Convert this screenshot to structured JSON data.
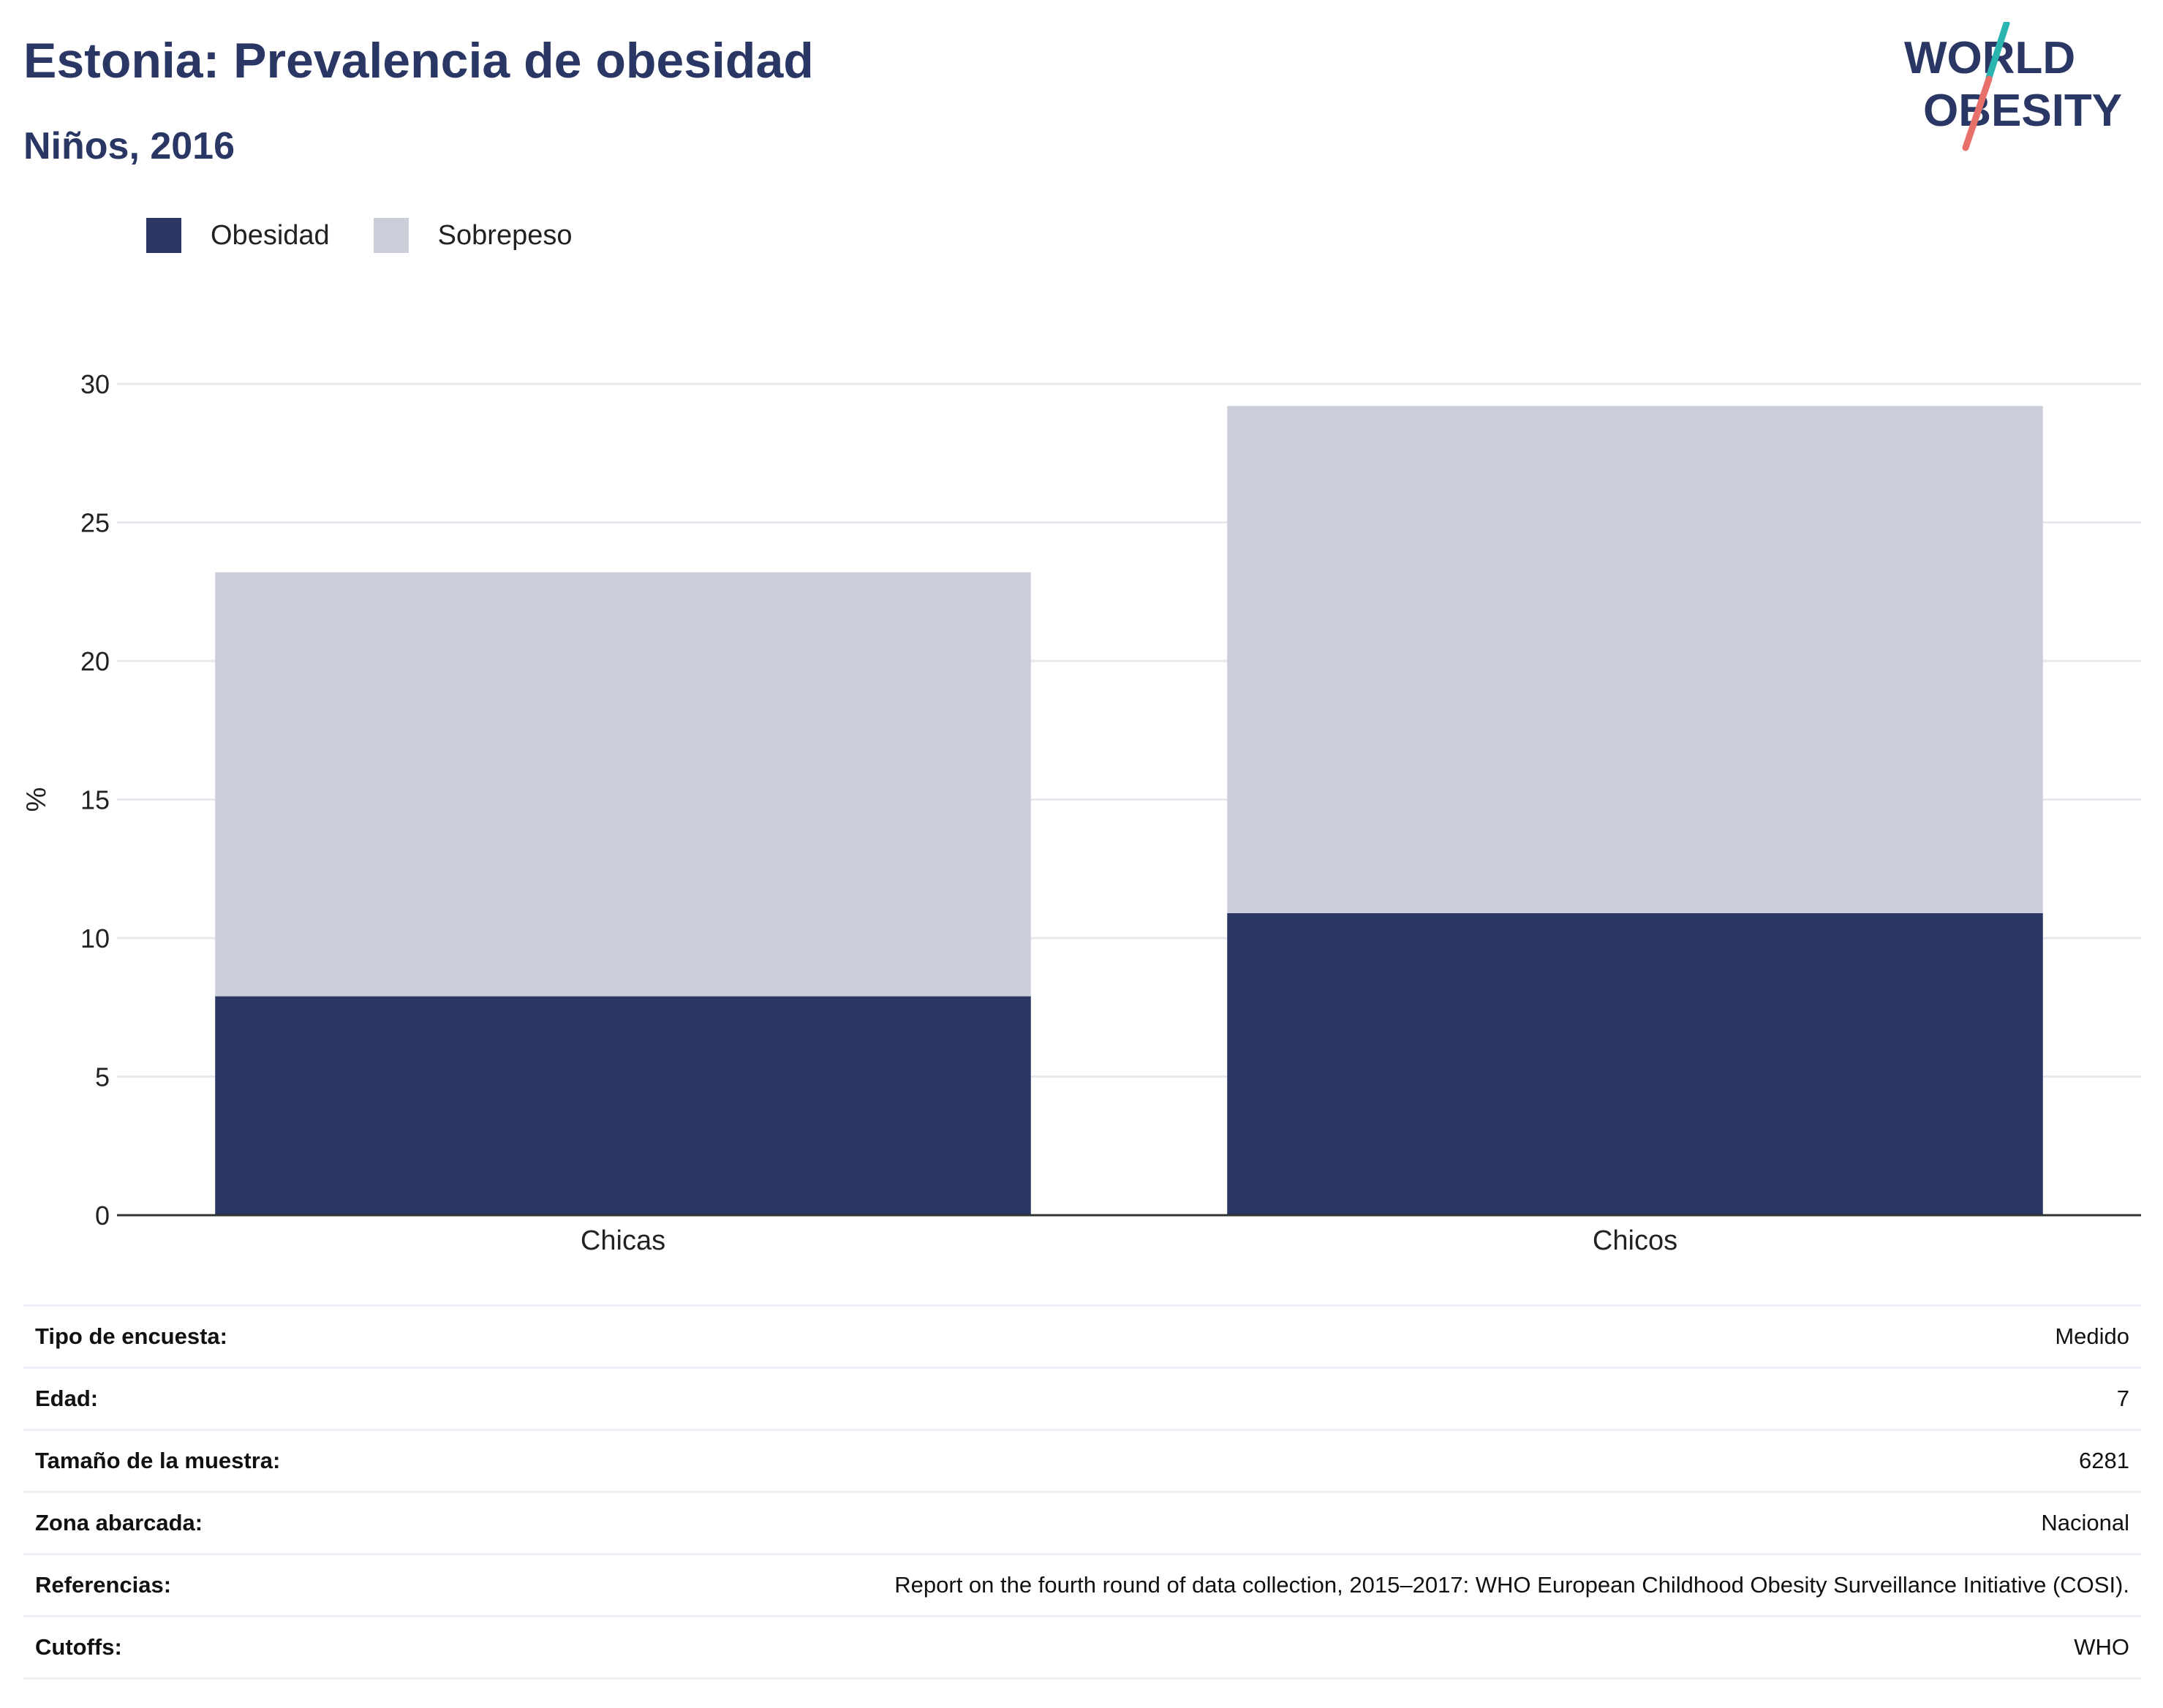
{
  "header": {
    "title": "Estonia: Prevalencia de obesidad",
    "subtitle": "Niños, 2016"
  },
  "logo": {
    "line1": "WORLD",
    "line2": "OBESITY",
    "colors": {
      "text": "#2a3663",
      "slash_top": "#2bb5b0",
      "slash_bottom": "#e8706a"
    }
  },
  "legend": {
    "items": [
      {
        "label": "Obesidad",
        "color": "#2a3663"
      },
      {
        "label": "Sobrepeso",
        "color": "#cbcdd9"
      }
    ]
  },
  "chart_data": {
    "type": "bar",
    "stacked": true,
    "categories": [
      "Chicas",
      "Chicos"
    ],
    "series": [
      {
        "name": "Obesidad",
        "values": [
          7.9,
          10.9
        ],
        "color": "#2a3663"
      },
      {
        "name": "Sobrepeso",
        "values": [
          15.3,
          18.3
        ],
        "color": "#cbcdd9"
      }
    ],
    "ylabel": "%",
    "xlabel": "",
    "ylim": [
      0,
      30
    ],
    "yticks": [
      0,
      5,
      10,
      15,
      20,
      25,
      30
    ],
    "grid": true,
    "legend_position": "top-left"
  },
  "info_table": {
    "rows": [
      {
        "key": "Tipo de encuesta:",
        "value": "Medido"
      },
      {
        "key": "Edad:",
        "value": "7"
      },
      {
        "key": "Tamaño de la muestra:",
        "value": "6281"
      },
      {
        "key": "Zona abarcada:",
        "value": "Nacional"
      },
      {
        "key": "Referencias:",
        "value": "Report on the fourth round of data collection, 2015–2017: WHO European Childhood Obesity Surveillance Initiative (COSI)."
      },
      {
        "key": "Cutoffs:",
        "value": "WHO"
      }
    ]
  }
}
